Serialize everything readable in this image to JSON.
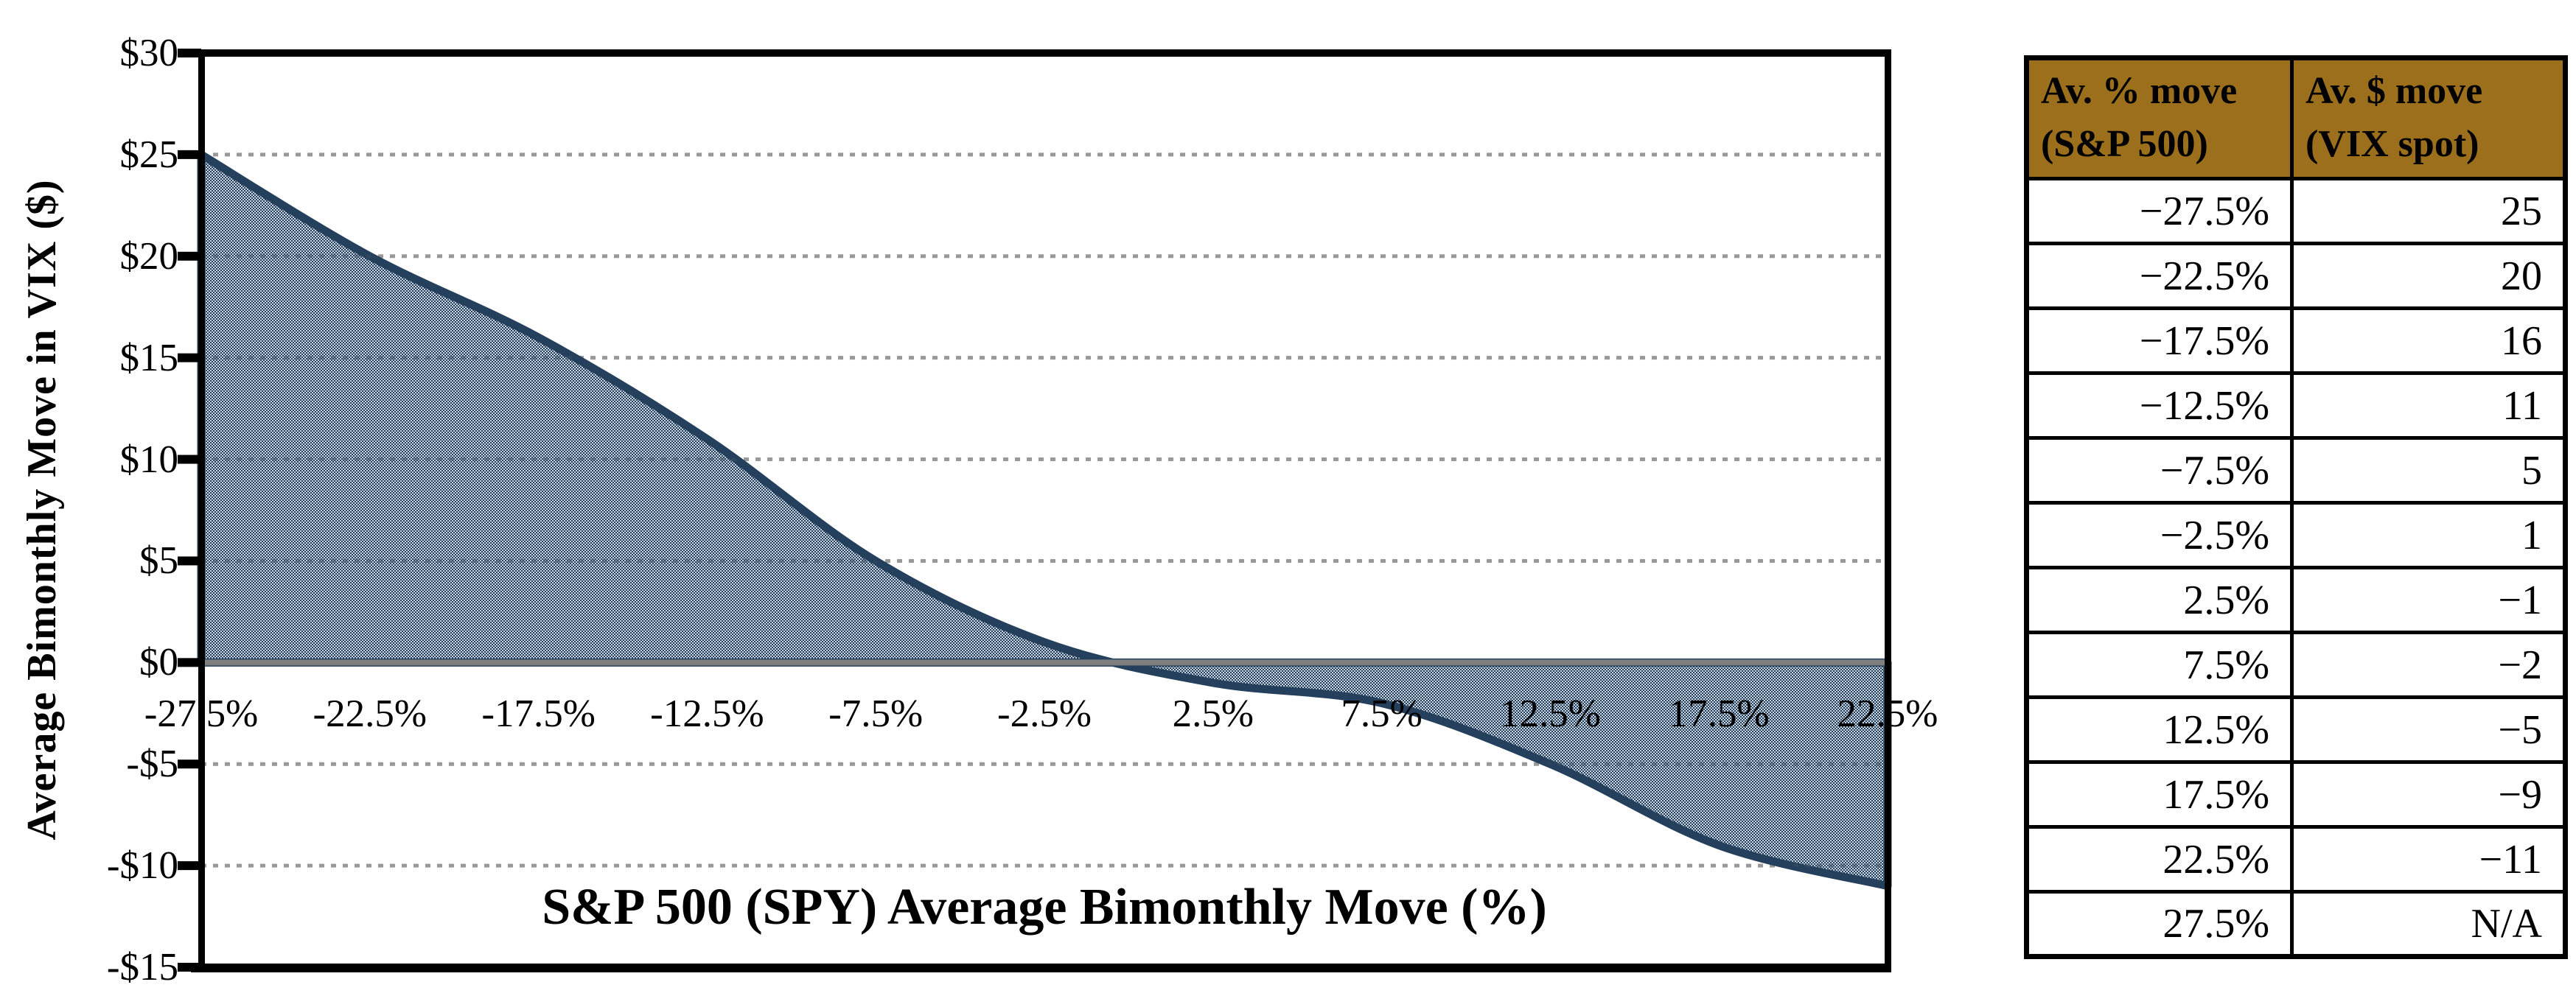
{
  "chart": {
    "y_axis_title": "Average Bimonthly Move in VIX ($)",
    "x_axis_title": "S&P 500 (SPY) Average Bimonthly Move (%)",
    "y_tick_labels": [
      "$30",
      "$25",
      "$20",
      "$15",
      "$10",
      "$5",
      "$0",
      "-$5",
      "-$10",
      "-$15"
    ],
    "x_tick_labels": [
      "-27.5%",
      "-22.5%",
      "-17.5%",
      "-12.5%",
      "-7.5%",
      "-2.5%",
      "2.5%",
      "7.5%",
      "12.5%",
      "17.5%",
      "22.5%"
    ],
    "colors": {
      "line": "#24405C",
      "fill_background": "#CBD5E0",
      "fill_dot": "#24405C",
      "gridline": "#999999",
      "zero_line": "#7F7F7F",
      "plot_border": "#000000",
      "table_header_bg": "#9B6F1B"
    }
  },
  "chart_data": {
    "type": "area",
    "x": [
      -27.5,
      -22.5,
      -17.5,
      -12.5,
      -7.5,
      -2.5,
      2.5,
      7.5,
      12.5,
      17.5,
      22.5
    ],
    "values": [
      25,
      20,
      16,
      11,
      5,
      1,
      -1,
      -2,
      -5,
      -9,
      -11
    ],
    "title": "",
    "xlabel": "S&P 500 (SPY) Average Bimonthly Move (%)",
    "ylabel": "Average Bimonthly Move in VIX ($)",
    "ylim": [
      -15,
      30
    ],
    "y_tick_step": 5,
    "smooth": true,
    "grid": "horizontal-dotted",
    "legend": "none"
  },
  "table": {
    "col1_header": "Av. % move\n(S&P 500)",
    "col2_header": "Av. $ move\n(VIX spot)",
    "rows": [
      [
        "−27.5%",
        "25"
      ],
      [
        "−22.5%",
        "20"
      ],
      [
        "−17.5%",
        "16"
      ],
      [
        "−12.5%",
        "11"
      ],
      [
        "−7.5%",
        "5"
      ],
      [
        "−2.5%",
        "1"
      ],
      [
        "2.5%",
        "−1"
      ],
      [
        "7.5%",
        "−2"
      ],
      [
        "12.5%",
        "−5"
      ],
      [
        "17.5%",
        "−9"
      ],
      [
        "22.5%",
        "−11"
      ],
      [
        "27.5%",
        "N/A"
      ]
    ]
  }
}
